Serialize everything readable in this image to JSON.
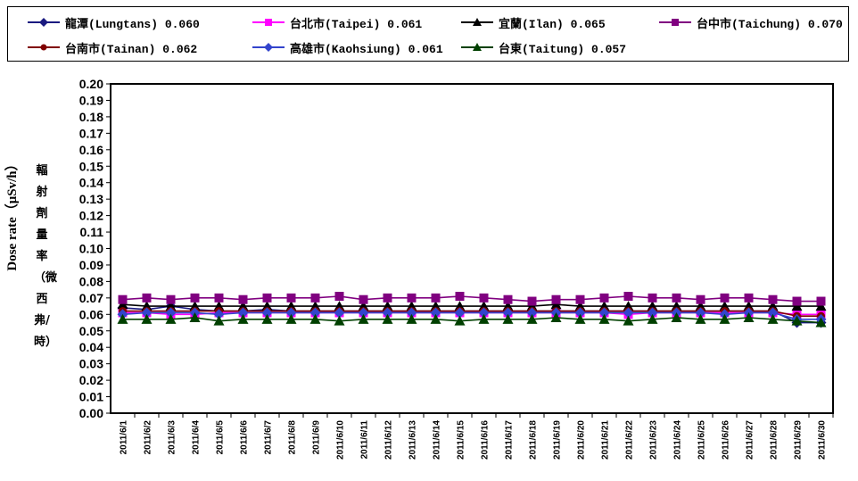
{
  "chart_data": {
    "type": "line",
    "title": "",
    "ylabel_en": "Dose rate（μSv/h）",
    "ylabel_zh": "輻射劑量率（微西弗/時）",
    "xlabel": "",
    "ylim": [
      0,
      0.2
    ],
    "yticks": [
      "0.00",
      "0.01",
      "0.02",
      "0.03",
      "0.04",
      "0.05",
      "0.06",
      "0.07",
      "0.08",
      "0.09",
      "0.10",
      "0.11",
      "0.12",
      "0.13",
      "0.14",
      "0.15",
      "0.16",
      "0.17",
      "0.18",
      "0.19",
      "0.20"
    ],
    "grid": false,
    "legend_position": "top",
    "categories": [
      "2011/6/1",
      "2011/6/2",
      "2011/6/3",
      "2011/6/4",
      "2011/6/5",
      "2011/6/6",
      "2011/6/7",
      "2011/6/8",
      "2011/6/9",
      "2011/6/10",
      "2011/6/11",
      "2011/6/12",
      "2011/6/13",
      "2011/6/14",
      "2011/6/15",
      "2011/6/16",
      "2011/6/17",
      "2011/6/18",
      "2011/6/19",
      "2011/6/20",
      "2011/6/21",
      "2011/6/22",
      "2011/6/23",
      "2011/6/24",
      "2011/6/25",
      "2011/6/26",
      "2011/6/27",
      "2011/6/28",
      "2011/6/29",
      "2011/6/30"
    ],
    "series": [
      {
        "name": "龍潭(Lungtans) 0.060",
        "color": "#1a1a80",
        "marker": "diamond",
        "values": [
          0.064,
          0.063,
          0.065,
          0.063,
          0.062,
          0.062,
          0.063,
          0.062,
          0.062,
          0.062,
          0.062,
          0.062,
          0.062,
          0.062,
          0.062,
          0.062,
          0.062,
          0.062,
          0.062,
          0.062,
          0.062,
          0.062,
          0.062,
          0.062,
          0.062,
          0.062,
          0.062,
          0.062,
          0.055,
          0.055
        ]
      },
      {
        "name": "台北市(Taipei) 0.061",
        "color": "#ff00ff",
        "marker": "square",
        "values": [
          0.061,
          0.061,
          0.06,
          0.06,
          0.061,
          0.061,
          0.061,
          0.061,
          0.061,
          0.061,
          0.061,
          0.061,
          0.061,
          0.061,
          0.061,
          0.061,
          0.061,
          0.061,
          0.061,
          0.061,
          0.061,
          0.06,
          0.061,
          0.061,
          0.061,
          0.061,
          0.061,
          0.061,
          0.06,
          0.06
        ]
      },
      {
        "name": "宜蘭(Ilan) 0.065",
        "color": "#000000",
        "marker": "triangle",
        "values": [
          0.066,
          0.065,
          0.065,
          0.065,
          0.065,
          0.065,
          0.065,
          0.065,
          0.065,
          0.065,
          0.065,
          0.065,
          0.065,
          0.065,
          0.065,
          0.065,
          0.065,
          0.065,
          0.066,
          0.065,
          0.065,
          0.065,
          0.065,
          0.065,
          0.065,
          0.065,
          0.065,
          0.065,
          0.065,
          0.065
        ]
      },
      {
        "name": "台中市(Taichung) 0.070",
        "color": "#800080",
        "marker": "square",
        "values": [
          0.069,
          0.07,
          0.069,
          0.07,
          0.07,
          0.069,
          0.07,
          0.07,
          0.07,
          0.071,
          0.069,
          0.07,
          0.07,
          0.07,
          0.071,
          0.07,
          0.069,
          0.068,
          0.069,
          0.069,
          0.07,
          0.071,
          0.07,
          0.07,
          0.069,
          0.07,
          0.07,
          0.069,
          0.068,
          0.068
        ]
      },
      {
        "name": "台南市(Tainan) 0.062",
        "color": "#800000",
        "marker": "circle",
        "values": [
          0.062,
          0.062,
          0.062,
          0.062,
          0.062,
          0.062,
          0.062,
          0.062,
          0.062,
          0.062,
          0.062,
          0.062,
          0.062,
          0.062,
          0.062,
          0.062,
          0.062,
          0.062,
          0.062,
          0.062,
          0.062,
          0.062,
          0.062,
          0.062,
          0.062,
          0.062,
          0.062,
          0.062,
          0.059,
          0.059
        ]
      },
      {
        "name": "高雄市(Kaohsiung) 0.061",
        "color": "#3344cc",
        "marker": "diamond",
        "values": [
          0.06,
          0.061,
          0.061,
          0.061,
          0.06,
          0.061,
          0.061,
          0.061,
          0.061,
          0.061,
          0.061,
          0.061,
          0.061,
          0.061,
          0.061,
          0.061,
          0.061,
          0.061,
          0.061,
          0.061,
          0.061,
          0.061,
          0.061,
          0.061,
          0.061,
          0.06,
          0.061,
          0.061,
          0.057,
          0.057
        ]
      },
      {
        "name": "台東(Taitung) 0.057",
        "color": "#004000",
        "marker": "triangle",
        "values": [
          0.057,
          0.057,
          0.057,
          0.058,
          0.056,
          0.057,
          0.057,
          0.057,
          0.057,
          0.056,
          0.057,
          0.057,
          0.057,
          0.057,
          0.056,
          0.057,
          0.057,
          0.057,
          0.058,
          0.057,
          0.057,
          0.056,
          0.057,
          0.058,
          0.057,
          0.057,
          0.058,
          0.057,
          0.056,
          0.055
        ]
      }
    ]
  }
}
